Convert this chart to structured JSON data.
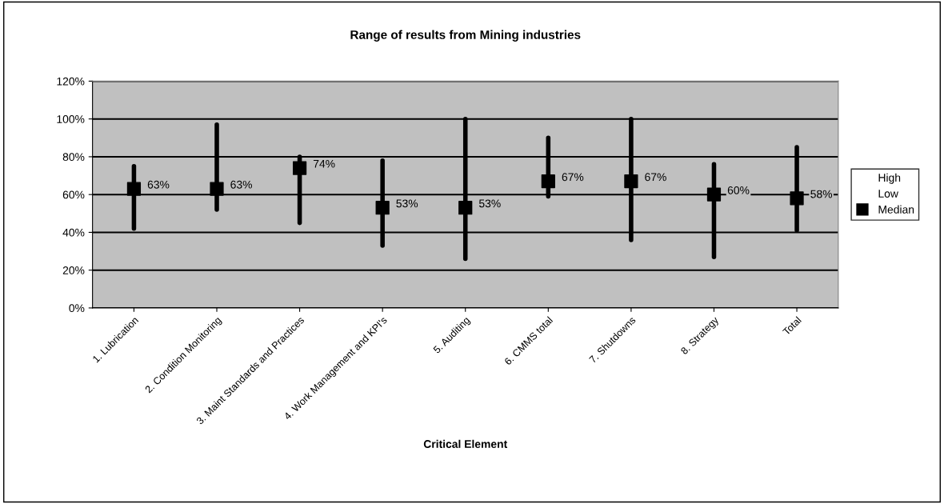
{
  "chart_data": {
    "type": "scatter",
    "title": "Range of results from Mining industries",
    "xlabel": "Critical Element",
    "categories": [
      "1. Lubrication",
      "2. Condition Monitoring",
      "3. Maint Standards and Practices",
      "4. Work Management and KPI's",
      "5. Auditing",
      "6. CMMS total",
      "7. Shutdowns",
      "8. Strategy",
      "Total"
    ],
    "series": [
      {
        "name": "Median",
        "color": "#000000",
        "marker": "square",
        "values": [
          63,
          63,
          74,
          53,
          53,
          67,
          67,
          60,
          58
        ],
        "errors": [
          [
            42,
            75
          ],
          [
            52,
            97
          ],
          [
            45,
            80
          ],
          [
            33,
            78
          ],
          [
            26,
            100
          ],
          [
            59,
            90
          ],
          [
            36,
            100
          ],
          [
            27,
            76
          ],
          [
            41,
            85
          ]
        ],
        "value_labels": [
          "63%",
          "63%",
          "74%",
          "53%",
          "53%",
          "67%",
          "67%",
          "60%",
          "58%"
        ]
      }
    ],
    "annotations": [
      "High",
      "Low"
    ],
    "ylim": [
      0,
      120
    ],
    "yticks": [
      {
        "value": 0,
        "label": "0%"
      },
      {
        "value": 20,
        "label": "20%"
      },
      {
        "value": 40,
        "label": "40%"
      },
      {
        "value": 60,
        "label": "60%"
      },
      {
        "value": 80,
        "label": "80%"
      },
      {
        "value": 100,
        "label": "100%"
      },
      {
        "value": 120,
        "label": "120%"
      }
    ],
    "grid": "y",
    "legend": "right"
  }
}
